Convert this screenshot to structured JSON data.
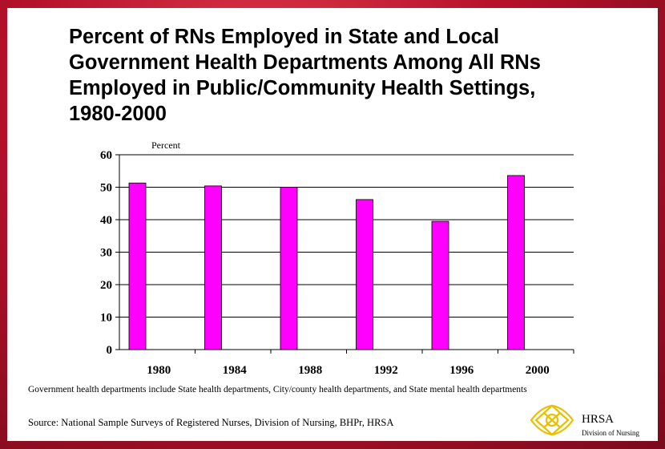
{
  "title_lines": [
    "Percent of RNs Employed in State and Local",
    "Government Health Departments Among All RNs",
    "Employed in Public/Community Health Settings,",
    "1980-2000"
  ],
  "footnote": "Government health departments include State health departments, City/county health departments, and  State mental health departments",
  "source": "Source:  National Sample Surveys of Registered Nurses, Division of Nursing, BHPr, HRSA",
  "logo": {
    "name": "HRSA",
    "subtitle": "Division of Nursing"
  },
  "colors": {
    "bar": "#ff00ff",
    "background": "#b5112a"
  },
  "chart_data": {
    "type": "bar",
    "title": "Percent of RNs Employed in State and Local Government Health Departments Among All RNs Employed in Public/Community Health Settings, 1980-2000",
    "categories": [
      "1980",
      "1984",
      "1988",
      "1992",
      "1996",
      "2000"
    ],
    "values": [
      51.3,
      50.4,
      50.0,
      46.2,
      39.5,
      53.6
    ],
    "ylabel": "Percent",
    "xlabel": "",
    "ylim": [
      0,
      60
    ],
    "yticks": [
      0,
      10,
      20,
      30,
      40,
      50,
      60
    ],
    "grid": true,
    "legend": "none"
  }
}
